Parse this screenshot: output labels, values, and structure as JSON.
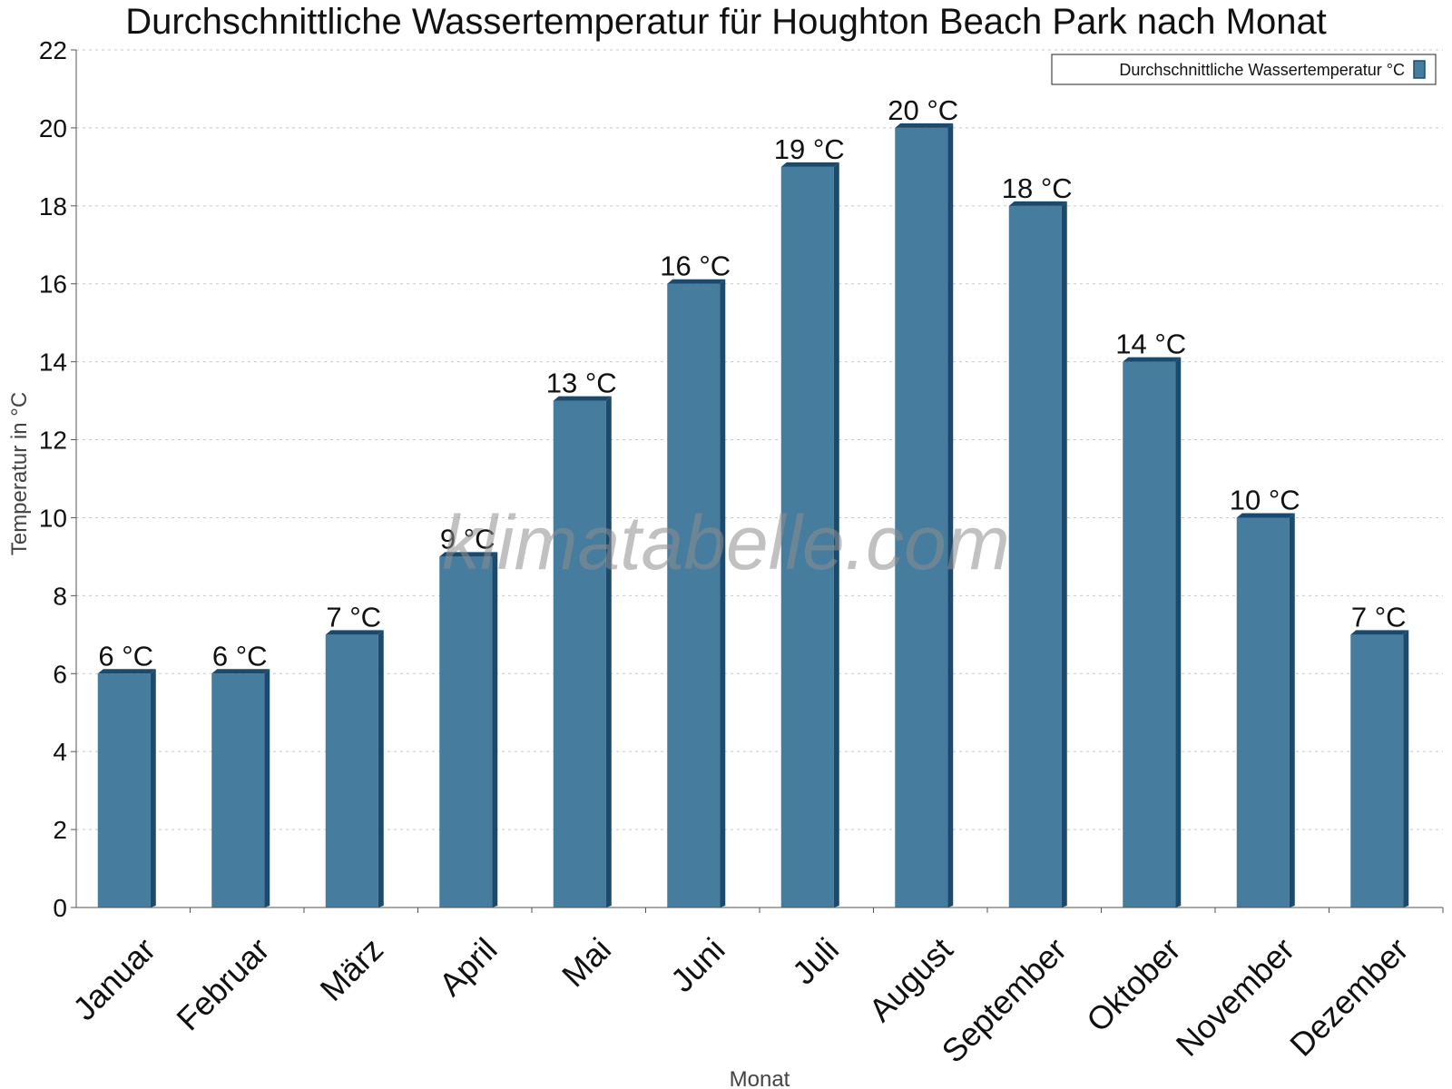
{
  "chart_data": {
    "type": "bar",
    "title": "Durchschnittliche Wassertemperatur für Houghton Beach Park nach Monat",
    "xlabel": "Monat",
    "ylabel": "Temperatur in °C",
    "ylim": [
      0,
      22
    ],
    "yticks": [
      0,
      2,
      4,
      6,
      8,
      10,
      12,
      14,
      16,
      18,
      20,
      22
    ],
    "categories": [
      "Januar",
      "Februar",
      "März",
      "April",
      "Mai",
      "Juni",
      "Juli",
      "August",
      "September",
      "Oktober",
      "November",
      "Dezember"
    ],
    "series": [
      {
        "name": "Durchschnittliche Wassertemperatur °C",
        "values": [
          6,
          6,
          7,
          9,
          13,
          16,
          19,
          20,
          18,
          14,
          10,
          7
        ],
        "labels": [
          "6 °C",
          "6 °C",
          "7 °C",
          "9 °C",
          "13 °C",
          "16 °C",
          "19 °C",
          "20 °C",
          "18 °C",
          "14 °C",
          "10 °C",
          "7 °C"
        ]
      }
    ],
    "grid": true,
    "legend_position": "top-right",
    "colors": {
      "bar": "#467c9e",
      "bar_side": "#1b4a6d",
      "bar_top": "#1b4a6d"
    }
  },
  "watermark": "klimatabelle.com"
}
